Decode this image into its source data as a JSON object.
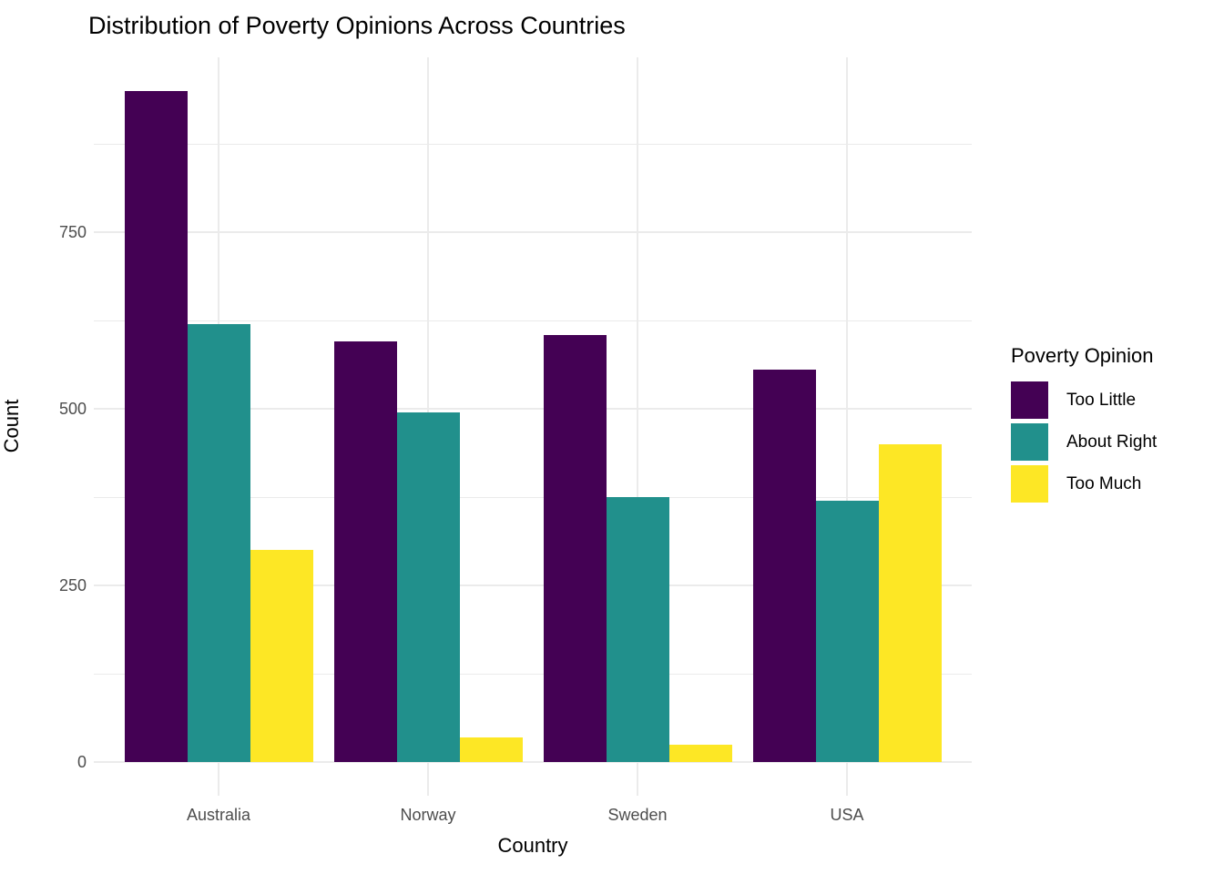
{
  "chart_data": {
    "type": "bar",
    "title": "Distribution of Poverty Opinions Across Countries",
    "xlabel": "Country",
    "ylabel": "Count",
    "categories": [
      "Australia",
      "Norway",
      "Sweden",
      "USA"
    ],
    "series": [
      {
        "name": "Too Little",
        "color": "#440154",
        "values": [
          950,
          595,
          605,
          555
        ]
      },
      {
        "name": "About Right",
        "color": "#21908C",
        "values": [
          620,
          495,
          375,
          370
        ]
      },
      {
        "name": "Too Much",
        "color": "#FDE725",
        "values": [
          300,
          35,
          25,
          450
        ]
      }
    ],
    "yticks": [
      0,
      250,
      500,
      750
    ],
    "yminorticks": [
      125,
      375,
      625,
      875
    ],
    "ylim": [
      -47.5,
      997.5
    ],
    "grid": "on",
    "legend": {
      "title": "Poverty Opinion",
      "position": "right"
    },
    "colors": {
      "background": "#FFFFFF",
      "gridline": "#EBEBEB",
      "tick_label": "#4D4D4D",
      "text": "#000000"
    }
  }
}
